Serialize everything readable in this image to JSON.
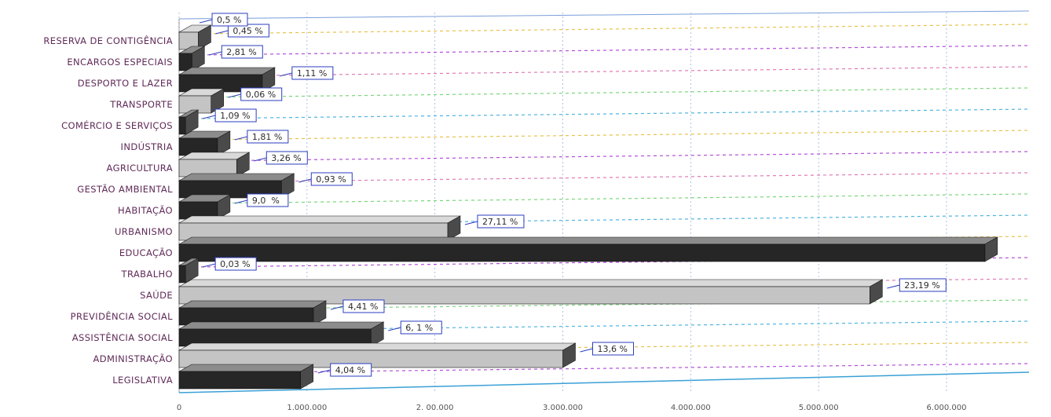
{
  "chart_data": {
    "type": "bar",
    "orientation": "horizontal",
    "style": "3d",
    "categories": [
      "LEGISLATIVA",
      "ADMINISTRAÇÃO",
      "ASSISTÊNCIA SOCIAL",
      "PREVIDÊNCIA SOCIAL",
      "SAÚDE",
      "TRABALHO",
      "EDUCAÇÃO",
      "URBANISMO",
      "HABITAÇÃO",
      "GESTÃO AMBIENTAL",
      "AGRICULTURA",
      "INDÚSTRIA",
      "COMÉRCIO E SERVIÇOS",
      "TRANSPORTE",
      "DESPORTO E LAZER",
      "ENCARGOS ESPECIAIS",
      "RESERVA DE CONTIGÊNCIA"
    ],
    "values": [
      950000,
      3000000,
      1500000,
      1050000,
      5400000,
      50000,
      6300000,
      2100000,
      300000,
      800000,
      450000,
      300000,
      50000,
      250000,
      650000,
      100000,
      150000
    ],
    "data_labels": [
      "4,04 %",
      "13,6 %",
      "6, 1 %",
      "4,41 %",
      "23,19 %",
      "0,03 %",
      "",
      "27,11 %",
      "9,0  %",
      "0,93 %",
      "3,26 %",
      "1,81 %",
      "1,09 %",
      "0,06 %",
      "1,11 %",
      "2,81 %",
      "0,45 %"
    ],
    "extra_labels": [
      "0,5 %"
    ],
    "x_ticks": [
      "0",
      "1.000.000",
      "2. 00.000",
      "3.000.000",
      "4.000.000",
      "5.000.000",
      "6.000.000"
    ],
    "xlim": [
      0,
      7000000
    ],
    "title": "",
    "xlabel": "",
    "ylabel": "",
    "grid": true,
    "legend": "none"
  },
  "colors": {
    "bar_front": "#262626",
    "bar_top": "#8c8c8c",
    "bar_side": "#4a4a4a",
    "bar_light": "#c4c4c4",
    "label_border": "#2b3dbf",
    "category_text": "#5f2a58",
    "grid_lines": [
      "#b34fd6",
      "#e8c24a",
      "#4fb3e0",
      "#7ad67a",
      "#e07ab3"
    ]
  }
}
